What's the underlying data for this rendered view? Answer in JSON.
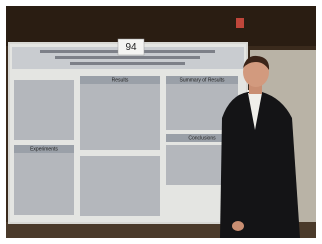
{
  "poster": {
    "number": "94",
    "sections": [
      "Results",
      "Summary of Results",
      "Experiments",
      "Conclusions"
    ]
  }
}
